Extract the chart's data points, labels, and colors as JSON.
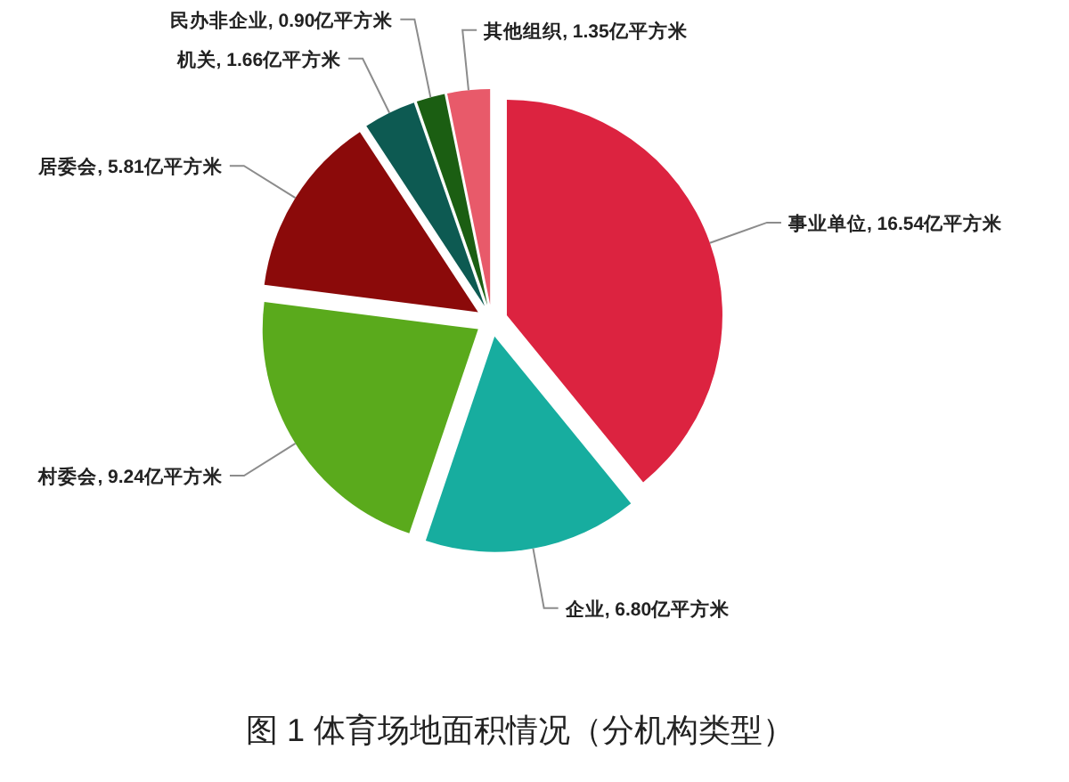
{
  "chart_data": {
    "type": "pie",
    "title": "图 1 体育场地面积情况（分机构类型）",
    "categories": [
      "事业单位",
      "企业",
      "村委会",
      "居委会",
      "机关",
      "民办非企业",
      "其他组织"
    ],
    "values": [
      16.54,
      6.8,
      9.24,
      5.81,
      1.66,
      0.9,
      1.35
    ],
    "colors": [
      "#dc2340",
      "#17ad9f",
      "#5aaa1c",
      "#8b0a0a",
      "#0d5a52",
      "#1b5e12",
      "#e85a6a"
    ],
    "value_labels": [
      "16.54亿平方米",
      "6.80亿平方米",
      "9.24亿平方米",
      "5.81亿平方米",
      "1.66亿平方米",
      "0.90亿平方米",
      "1.35亿平方米"
    ]
  }
}
